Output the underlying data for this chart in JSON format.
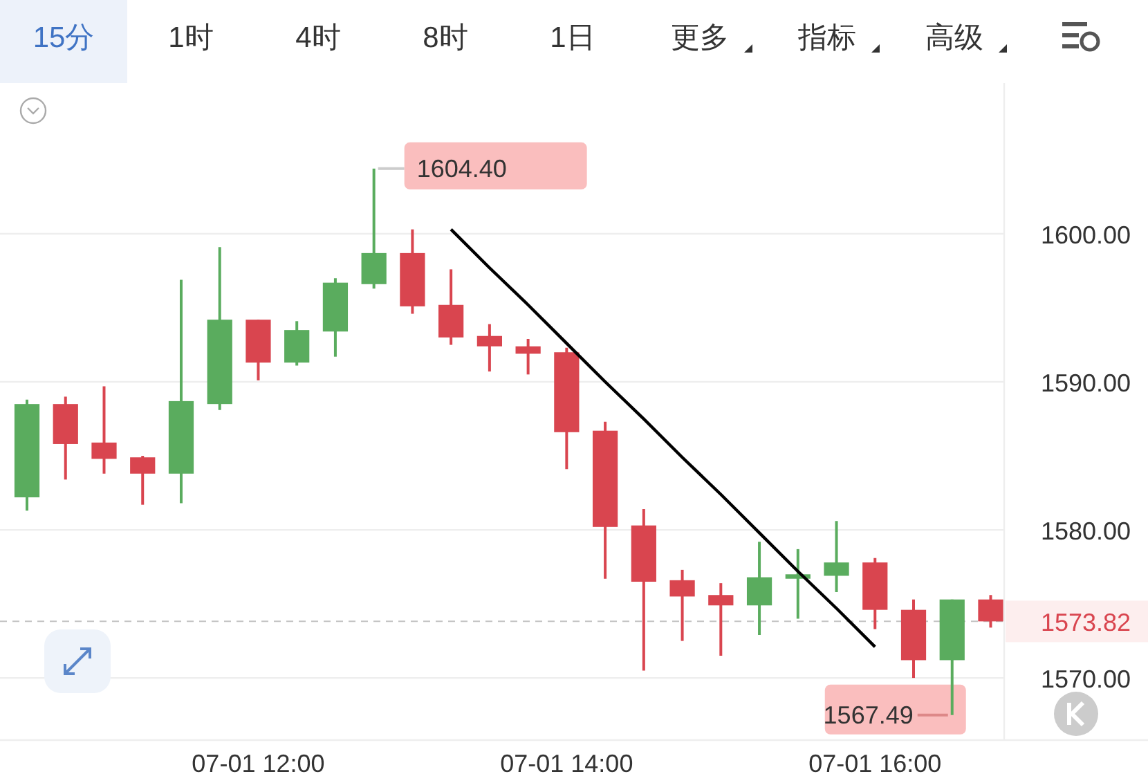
{
  "chart_data": {
    "type": "candlestick",
    "annotations": [
      "15分",
      "1时",
      "4时",
      "8时",
      "1日",
      "更多",
      "指标",
      "高级",
      "1604.40",
      "1567.49"
    ],
    "categories": [
      null,
      null,
      null,
      null,
      null,
      null,
      "07-01 12:00",
      null,
      null,
      null,
      null,
      null,
      null,
      null,
      "07-01 14:00",
      null,
      null,
      null,
      null,
      null,
      null,
      null,
      "07-01 16:00",
      null,
      null,
      null
    ],
    "ohlc": [
      [
        1582.2,
        1588.8,
        1581.3,
        1588.5
      ],
      [
        1588.5,
        1589.0,
        1583.4,
        1585.8
      ],
      [
        1585.9,
        1589.7,
        1583.8,
        1584.8
      ],
      [
        1584.9,
        1585.0,
        1581.7,
        1583.8
      ],
      [
        1583.8,
        1596.9,
        1581.8,
        1588.7
      ],
      [
        1588.5,
        1599.1,
        1588.1,
        1594.2
      ],
      [
        1594.2,
        1594.2,
        1590.1,
        1591.3
      ],
      [
        1591.3,
        1594.1,
        1591.1,
        1593.5
      ],
      [
        1593.4,
        1597.0,
        1591.7,
        1596.7
      ],
      [
        1596.6,
        1604.4,
        1596.3,
        1598.7
      ],
      [
        1598.7,
        1600.3,
        1594.6,
        1595.1
      ],
      [
        1595.2,
        1597.6,
        1592.5,
        1593.0
      ],
      [
        1593.1,
        1593.9,
        1590.7,
        1592.4
      ],
      [
        1592.4,
        1592.9,
        1590.5,
        1591.9
      ],
      [
        1592.0,
        1592.3,
        1584.1,
        1586.6
      ],
      [
        1586.7,
        1587.3,
        1576.7,
        1580.2
      ],
      [
        1580.3,
        1581.4,
        1570.5,
        1576.5
      ],
      [
        1576.6,
        1577.3,
        1572.5,
        1575.5
      ],
      [
        1575.6,
        1576.4,
        1571.5,
        1574.9
      ],
      [
        1574.9,
        1579.2,
        1572.9,
        1576.8
      ],
      [
        1576.7,
        1578.7,
        1574.0,
        1577.0
      ],
      [
        1576.9,
        1580.6,
        1575.8,
        1577.8
      ],
      [
        1577.8,
        1578.1,
        1573.3,
        1574.6
      ],
      [
        1574.6,
        1575.3,
        1570.0,
        1571.2
      ],
      [
        1571.2,
        1575.3,
        1567.49,
        1575.3
      ],
      [
        1575.3,
        1575.6,
        1573.4,
        1573.82
      ]
    ],
    "colors": [
      "#5aac5e",
      "#d9454f",
      "#d9454f",
      "#d9454f",
      "#5aac5e",
      "#5aac5e",
      "#d9454f",
      "#5aac5e",
      "#5aac5e",
      "#5aac5e",
      "#d9454f",
      "#d9454f",
      "#d9454f",
      "#d9454f",
      "#d9454f",
      "#d9454f",
      "#d9454f",
      "#d9454f",
      "#d9454f",
      "#5aac5e",
      "#5aac5e",
      "#5aac5e",
      "#d9454f",
      "#d9454f",
      "#5aac5e",
      "#d9454f"
    ],
    "series": [
      {
        "type": "line",
        "values": [
          null,
          null,
          null,
          null,
          null,
          null,
          null,
          null,
          null,
          null,
          null,
          1600.3,
          1597.7,
          1595.2,
          1592.6,
          1590.0,
          1587.5,
          1584.9,
          1582.4,
          1579.8,
          1577.2,
          1574.7,
          1572.1,
          null,
          null,
          null
        ],
        "color": "#000000"
      }
    ],
    "ylim": [
      1565.8,
      1610.0
    ],
    "yticks": [
      {
        "value": 1570,
        "label": "1570.00"
      },
      {
        "value": 1580,
        "label": "1580.00"
      },
      {
        "value": 1590,
        "label": "1590.00"
      },
      {
        "value": 1600,
        "label": "1600.00"
      }
    ],
    "ref_lines": [
      {
        "axis": "y",
        "value": 1573.82,
        "label": "1573.82",
        "color": "#c4c4c4",
        "line_style": "dashed"
      }
    ],
    "grid": "y"
  }
}
